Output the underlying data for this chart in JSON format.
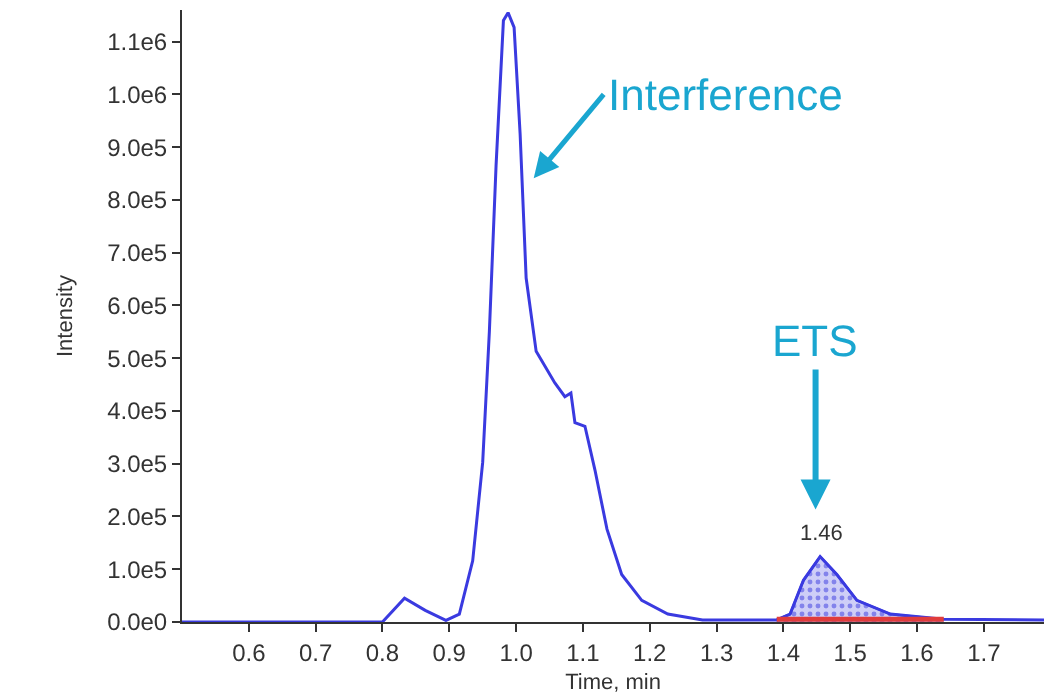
{
  "chart_data": {
    "type": "line",
    "xlabel": "Time, min",
    "ylabel": "Intensity",
    "series": [
      {
        "color": "#3a3ae0",
        "x": [
          0.5,
          0.8,
          0.833,
          0.864,
          0.895,
          0.915,
          0.935,
          0.95,
          0.96,
          0.97,
          0.981,
          0.988,
          0.997,
          1.006,
          1.015,
          1.03,
          1.058,
          1.073,
          1.082,
          1.088,
          1.103,
          1.118,
          1.136,
          1.158,
          1.188,
          1.227,
          1.279,
          1.39,
          1.41,
          1.43,
          1.455,
          1.48,
          1.51,
          1.56,
          1.64,
          1.79
        ],
        "values": [
          0,
          0,
          45000,
          22000,
          3000,
          15000,
          116000,
          303000,
          551000,
          865000,
          1140000,
          1155000,
          1127000,
          925000,
          652000,
          513000,
          453000,
          427000,
          434000,
          378000,
          371000,
          288000,
          176000,
          90000,
          41000,
          15000,
          4000,
          4000,
          15000,
          79000,
          124000,
          90000,
          41000,
          15000,
          5000,
          4000
        ]
      },
      {
        "type": "area",
        "color": "#3a3ae0",
        "x": [
          1.39,
          1.41,
          1.43,
          1.455,
          1.48,
          1.51,
          1.56,
          1.64
        ],
        "values": [
          4000,
          15000,
          79000,
          124000,
          90000,
          41000,
          15000,
          5000
        ]
      },
      {
        "color": "#e03c3c",
        "x": [
          1.39,
          1.45,
          1.5,
          1.55,
          1.6,
          1.64
        ],
        "values": [
          5000,
          5000,
          5000,
          5000,
          5000,
          5000
        ]
      }
    ],
    "xlim": [
      0.5,
      1.79
    ],
    "xticks": [
      0.6,
      0.7,
      0.8,
      0.9,
      {
        "value": 1,
        "label": "1.0"
      },
      1.1,
      1.2,
      1.3,
      1.4,
      1.5,
      1.6,
      1.7
    ],
    "ylim": [
      0,
      1160000
    ],
    "yticks": [
      {
        "value": 0,
        "label": "0.0e0"
      },
      {
        "value": 100000,
        "label": "1.0e5"
      },
      {
        "value": 200000,
        "label": "2.0e5"
      },
      {
        "value": 300000,
        "label": "3.0e5"
      },
      {
        "value": 400000,
        "label": "4.0e5"
      },
      {
        "value": 500000,
        "label": "5.0e5"
      },
      {
        "value": 600000,
        "label": "6.0e5"
      },
      {
        "value": 700000,
        "label": "7.0e5"
      },
      {
        "value": 800000,
        "label": "8.0e5"
      },
      {
        "value": 900000,
        "label": "9.0e5"
      },
      {
        "value": 1000000,
        "label": "1.0e6"
      },
      {
        "value": 1100000,
        "label": "1.1e6"
      }
    ],
    "annotations": [
      "Interference",
      "ETS",
      {
        "text": "1.46",
        "x": 1.455,
        "y": 124000
      }
    ],
    "marker": "none",
    "line_style": "solid"
  }
}
